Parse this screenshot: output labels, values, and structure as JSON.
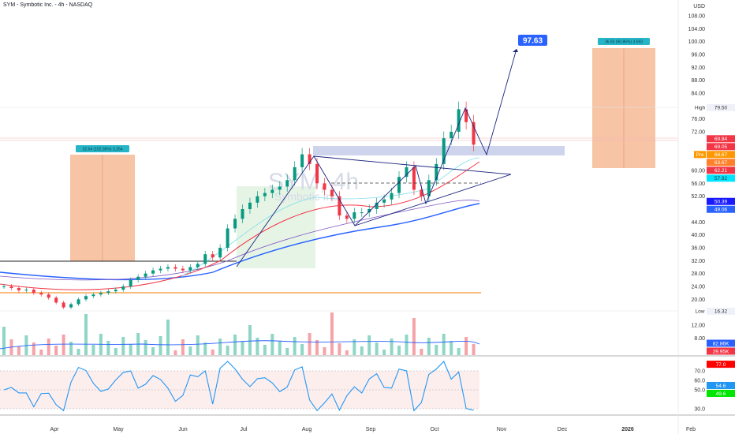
{
  "header": {
    "title": "SYM - Symbotic Inc. - 4h - NASDAQ",
    "currency": "USD"
  },
  "watermark": {
    "symbol": "SYM, 4h",
    "name": "Symbotic Inc."
  },
  "chart_data": {
    "type": "candlestick",
    "title": "SYM - Symbotic Inc. - 4h - NASDAQ",
    "ylim": [
      8,
      108
    ],
    "y_ticks": [
      "108.00",
      "104.00",
      "100.00",
      "96.00",
      "92.00",
      "88.00",
      "84.00",
      "76.00",
      "72.00",
      "60.00",
      "56.00",
      "52.00",
      "44.00",
      "40.00",
      "36.00",
      "32.00",
      "28.00",
      "24.00",
      "20.00",
      "12.00",
      "8.00"
    ],
    "x_ticks": [
      "Apr",
      "May",
      "Jun",
      "Jul",
      "Aug",
      "Sep",
      "Oct",
      "Nov",
      "Dec",
      "2026",
      "Feb"
    ],
    "closes": [
      24,
      23.5,
      22.8,
      23,
      22,
      21.5,
      20.5,
      19,
      17.5,
      18.5,
      20,
      21,
      21.5,
      22,
      22.5,
      23,
      24,
      26,
      27,
      28,
      29,
      29.5,
      30,
      29.5,
      29,
      30,
      31,
      34,
      33,
      36,
      42,
      45,
      48,
      50,
      52,
      53,
      54,
      55,
      57,
      61,
      65,
      62,
      56,
      54,
      52,
      46,
      45,
      47,
      47,
      48,
      50,
      51,
      53,
      58,
      61,
      54,
      52,
      57,
      62,
      70,
      72,
      79,
      75,
      68
    ],
    "price_labels": {
      "high": {
        "label": "High",
        "value": "79.50"
      },
      "low": {
        "label": "Low",
        "value": "16.32"
      },
      "pre": {
        "label": "Pre",
        "value": "68.67"
      },
      "tags": [
        {
          "value": "69.84",
          "color": "#f23645"
        },
        {
          "value": "69.05",
          "color": "#f23645"
        },
        {
          "value": "63.67",
          "color": "#ff7f2a"
        },
        {
          "value": "62.21",
          "color": "#f23645"
        },
        {
          "value": "57.92",
          "color": "#00e5ff"
        },
        {
          "value": "50.39",
          "color": "#1a1aff"
        },
        {
          "value": "49.06",
          "color": "#2962ff"
        }
      ]
    },
    "target": {
      "value": "97.63"
    },
    "measures": [
      {
        "text": "32.64 (102.36%) 3,264"
      },
      {
        "text": "36.93 (60.86%) 3,693"
      }
    ],
    "volume": {
      "labels": [
        {
          "value": "82.86K",
          "color": "#2962ff"
        },
        {
          "value": "29.95K",
          "color": "#f23645"
        }
      ]
    },
    "rsi": {
      "ylim": [
        20,
        85
      ],
      "ticks": [
        "70.0",
        "60.0",
        "50.0",
        "30.0"
      ],
      "labels": [
        {
          "value": "77.0",
          "color": "#ff0000"
        },
        {
          "value": "54.6",
          "color": "#2196f3"
        },
        {
          "value": "49.6",
          "color": "#00e600"
        }
      ]
    }
  }
}
